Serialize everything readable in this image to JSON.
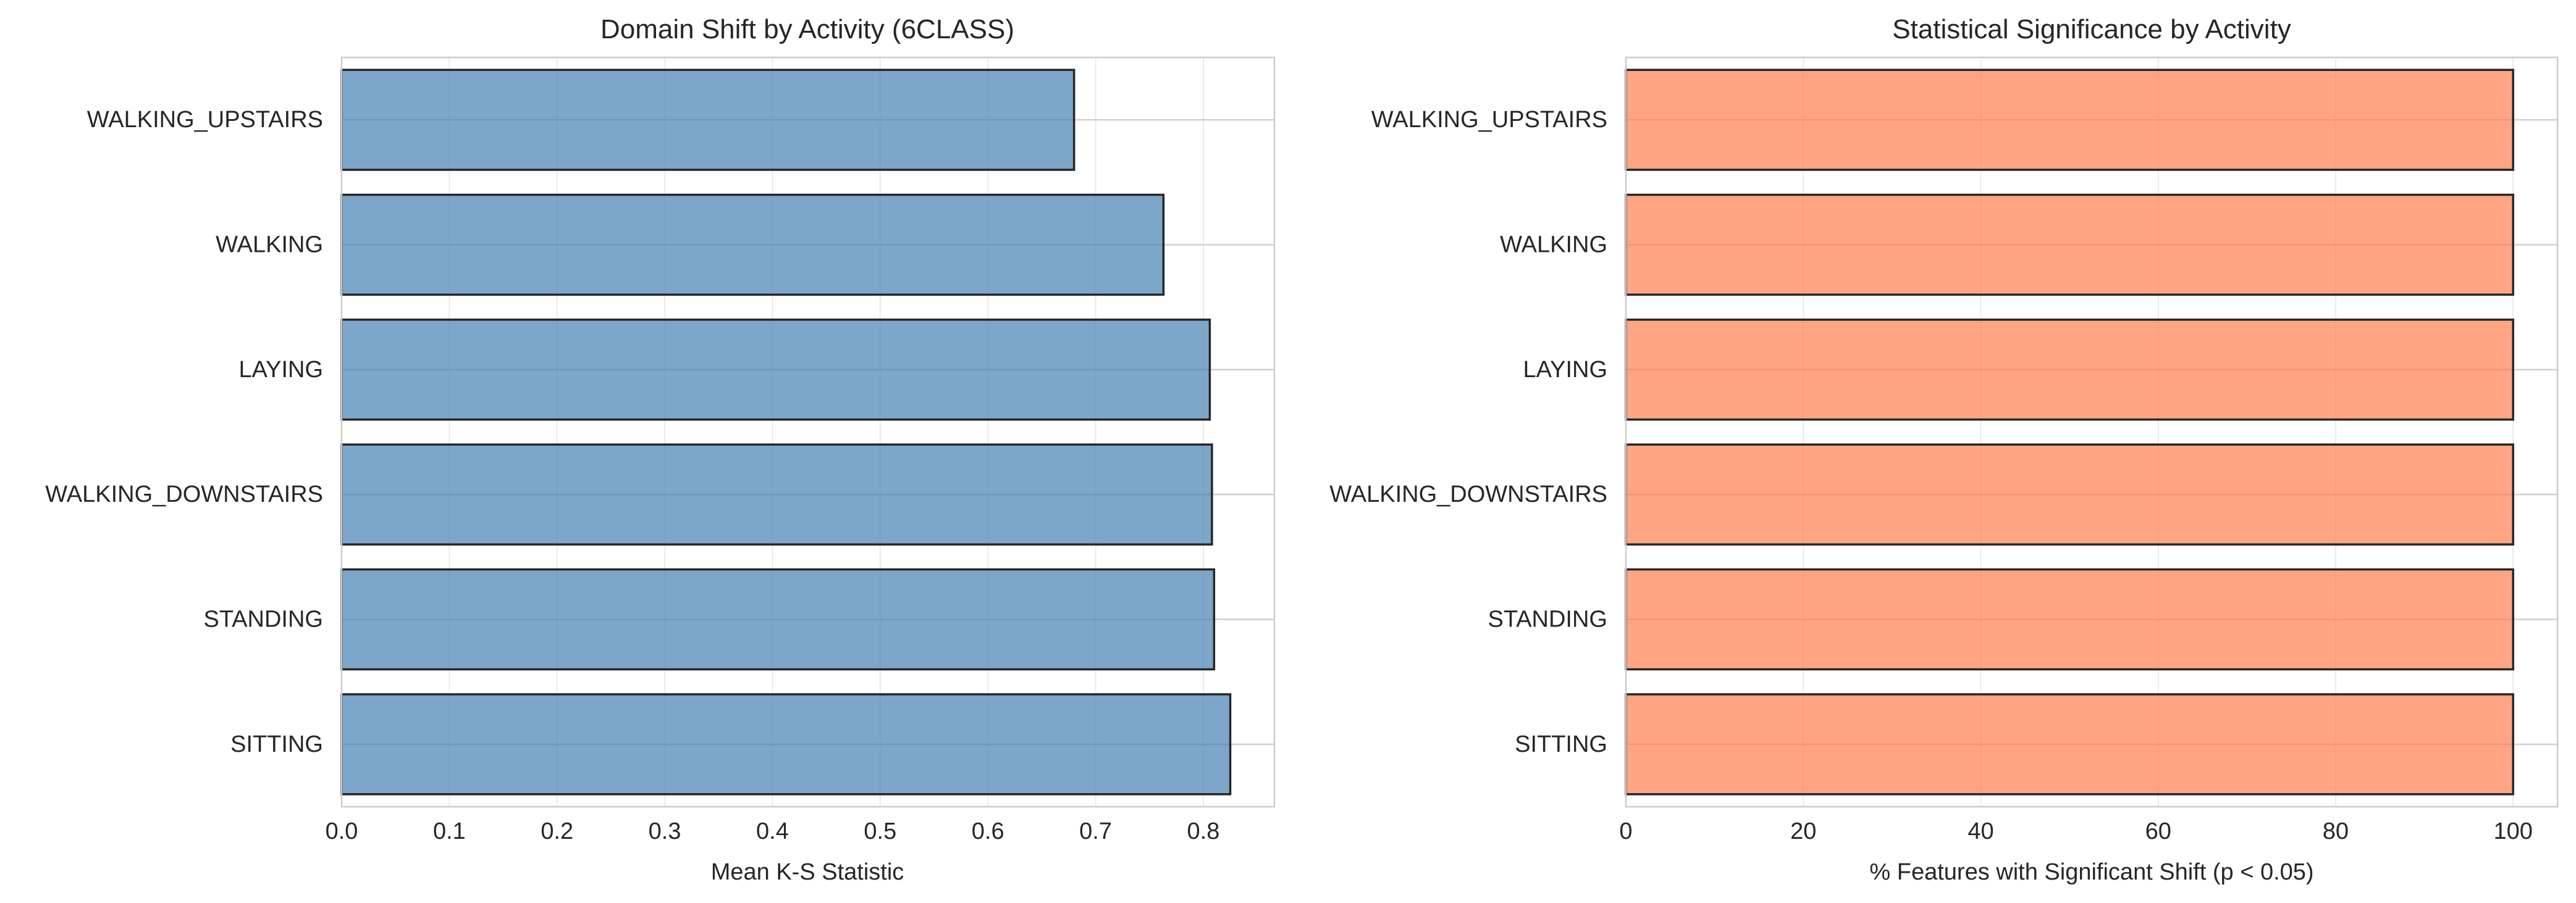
{
  "chart_data": [
    {
      "type": "bar",
      "orientation": "horizontal",
      "title": "Domain Shift by Activity (6CLASS)",
      "xlabel": "Mean K-S Statistic",
      "ylabel": "",
      "categories": [
        "WALKING_UPSTAIRS",
        "WALKING",
        "LAYING",
        "WALKING_DOWNSTAIRS",
        "STANDING",
        "SITTING"
      ],
      "values": [
        0.68,
        0.763,
        0.806,
        0.808,
        0.81,
        0.825
      ],
      "xlim": [
        0,
        0.866
      ],
      "xticks": [
        0.0,
        0.1,
        0.2,
        0.3,
        0.4,
        0.5,
        0.6,
        0.7,
        0.8
      ],
      "xtick_labels": [
        "0.0",
        "0.1",
        "0.2",
        "0.3",
        "0.4",
        "0.5",
        "0.6",
        "0.7",
        "0.8"
      ],
      "bar_color": "#4682b4",
      "bar_alpha": 0.7,
      "edge_color": "#262626",
      "grid": true
    },
    {
      "type": "bar",
      "orientation": "horizontal",
      "title": "Statistical Significance by Activity",
      "xlabel": "% Features with Significant Shift (p < 0.05)",
      "ylabel": "",
      "categories": [
        "WALKING_UPSTAIRS",
        "WALKING",
        "LAYING",
        "WALKING_DOWNSTAIRS",
        "STANDING",
        "SITTING"
      ],
      "values": [
        100,
        100,
        100,
        100,
        100,
        100
      ],
      "xlim": [
        0,
        105
      ],
      "xticks": [
        0,
        20,
        40,
        60,
        80,
        100
      ],
      "xtick_labels": [
        "0",
        "20",
        "40",
        "60",
        "80",
        "100"
      ],
      "bar_color": "#ff7f50",
      "bar_alpha": 0.7,
      "edge_color": "#262626",
      "grid": true
    }
  ]
}
